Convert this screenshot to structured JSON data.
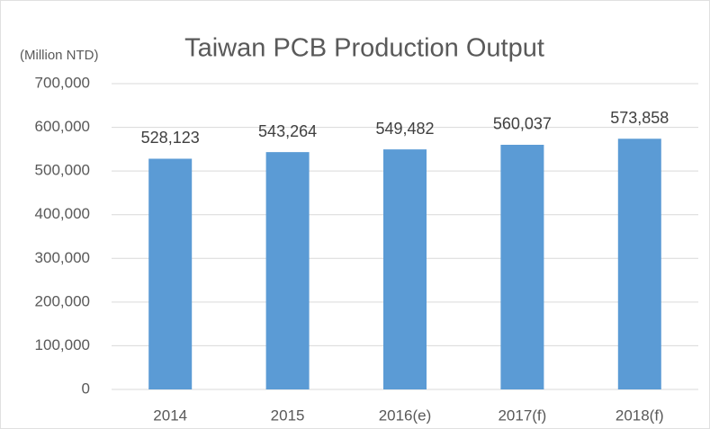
{
  "chart_data": {
    "type": "bar",
    "title": "Taiwan PCB Production Output",
    "y_label": "(Million NTD)",
    "categories": [
      "2014",
      "2015",
      "2016(e)",
      "2017(f)",
      "2018(f)"
    ],
    "values": [
      528123,
      543264,
      549482,
      560037,
      573858
    ],
    "value_labels": [
      "528,123",
      "543,264",
      "549,482",
      "560,037",
      "573,858"
    ],
    "color": "#5b9bd5",
    "ylim": [
      0,
      700000
    ],
    "yticks": [
      0,
      {
        "value": 100000,
        "label": "100,000"
      },
      {
        "value": 200000,
        "label": "200,000"
      },
      {
        "value": 300000,
        "label": "300,000"
      },
      {
        "value": 400000,
        "label": "400,000"
      },
      {
        "value": 500000,
        "label": "500,000"
      },
      {
        "value": 600000,
        "label": "600,000"
      },
      {
        "value": 700000,
        "label": "700,000"
      }
    ],
    "grid": true
  }
}
